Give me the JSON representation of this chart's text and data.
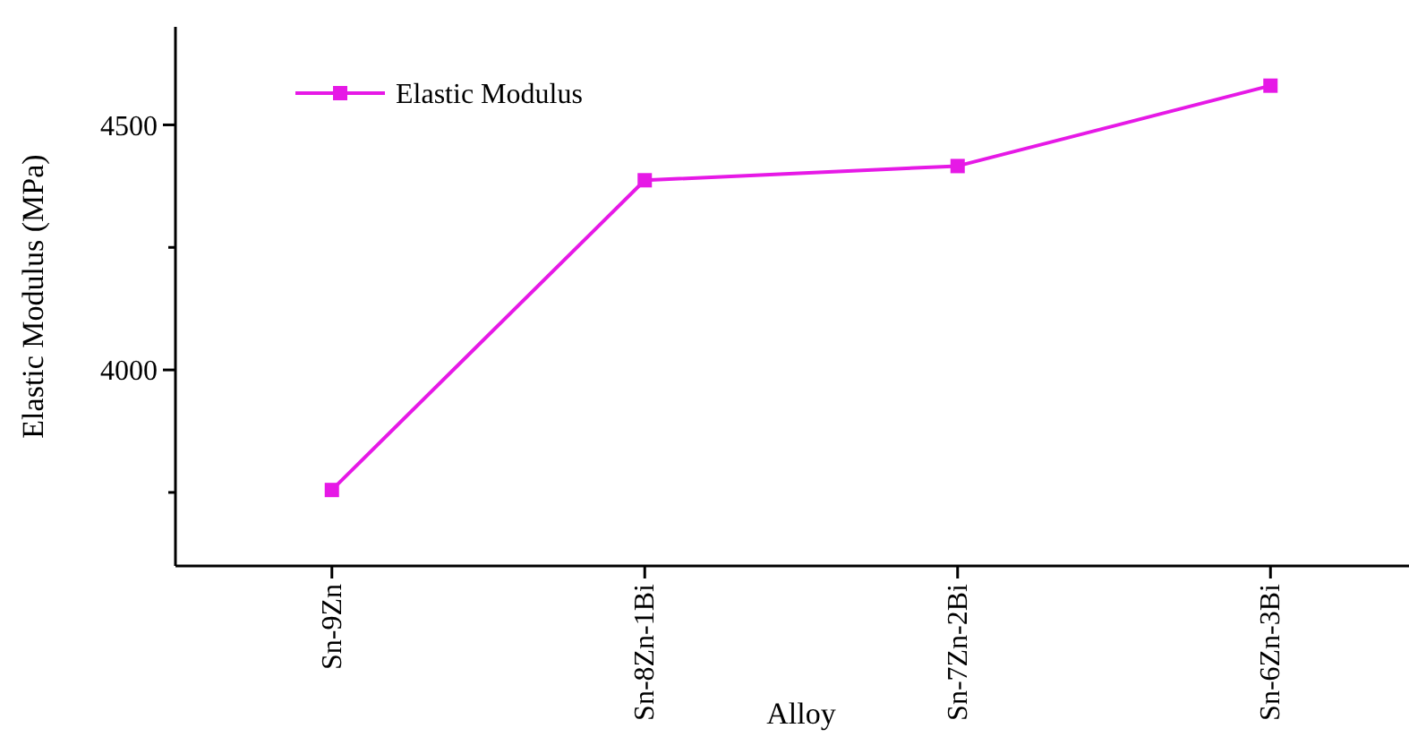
{
  "chart_data": {
    "type": "line",
    "xlabel": "Alloy",
    "ylabel": "Elastic Modulus (MPa)",
    "categories": [
      "Sn-9Zn",
      "Sn-8Zn-1Bi",
      "Sn-7Zn-2Bi",
      "Sn-6Zn-3Bi"
    ],
    "series": [
      {
        "name": "Elastic Modulus",
        "color": "#e619e6",
        "values": [
          3755,
          4387,
          4416,
          4580
        ]
      }
    ],
    "ylim": [
      3600,
      4700
    ],
    "yticks": [
      {
        "value": 3750,
        "label": null
      },
      4000,
      {
        "value": 4250,
        "label": null
      },
      4500
    ],
    "grid": false,
    "legend": "top left",
    "marker": "square",
    "line_style": "solid"
  }
}
